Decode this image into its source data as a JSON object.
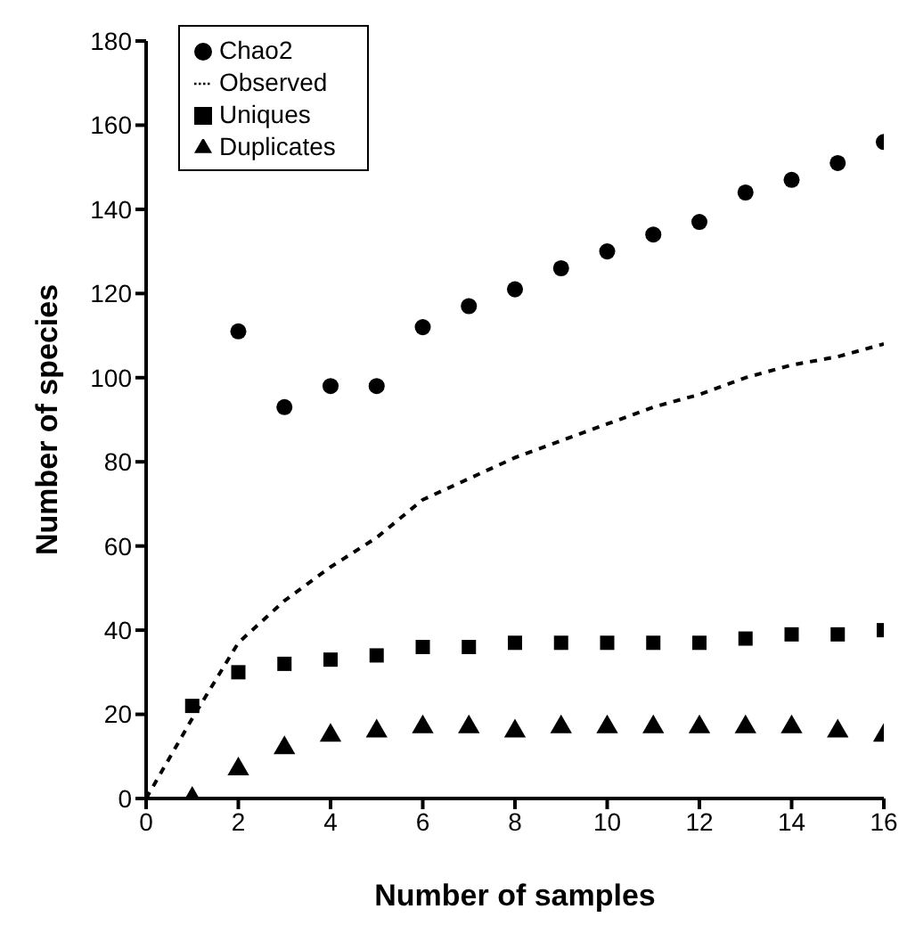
{
  "chart_data": {
    "type": "scatter",
    "xlabel": "Number of samples",
    "ylabel": "Number of species",
    "xlim": [
      0,
      16
    ],
    "xticks": [
      0,
      2,
      4,
      6,
      8,
      10,
      12,
      14,
      16
    ],
    "ylim": [
      0,
      180
    ],
    "yticks": [
      0,
      20,
      40,
      60,
      80,
      100,
      120,
      140,
      160,
      180
    ],
    "grid": false,
    "legend": "top left",
    "series": [
      {
        "name": "Chao2",
        "marker": "circle",
        "color": "#000000",
        "x": [
          2,
          3,
          4,
          5,
          6,
          7,
          8,
          9,
          10,
          11,
          12,
          13,
          14,
          15,
          16
        ],
        "values": [
          111,
          93,
          98,
          98,
          112,
          117,
          121,
          126,
          130,
          134,
          137,
          144,
          147,
          151,
          156
        ]
      },
      {
        "name": "Observed",
        "type": "line",
        "marker": "none",
        "line_style": "dashed",
        "color": "#000000",
        "x": [
          0,
          1,
          2,
          3,
          4,
          5,
          6,
          7,
          8,
          9,
          10,
          11,
          12,
          13,
          14,
          15,
          16
        ],
        "values": [
          0,
          19,
          37,
          47,
          55,
          62,
          71,
          76,
          81,
          85,
          89,
          93,
          96,
          100,
          103,
          105,
          108
        ]
      },
      {
        "name": "Uniques",
        "marker": "square",
        "color": "#000000",
        "x": [
          1,
          2,
          3,
          4,
          5,
          6,
          7,
          8,
          9,
          10,
          11,
          12,
          13,
          14,
          15,
          16
        ],
        "values": [
          22,
          30,
          32,
          33,
          34,
          36,
          36,
          37,
          37,
          37,
          37,
          37,
          38,
          39,
          39,
          40
        ]
      },
      {
        "name": "Duplicates",
        "marker": "triangle",
        "color": "#000000",
        "x": [
          1,
          2,
          3,
          4,
          5,
          6,
          7,
          8,
          9,
          10,
          11,
          12,
          13,
          14,
          15,
          16
        ],
        "values": [
          0,
          7,
          12,
          15,
          16,
          17,
          17,
          16,
          17,
          17,
          17,
          17,
          17,
          17,
          16,
          15
        ]
      }
    ]
  }
}
